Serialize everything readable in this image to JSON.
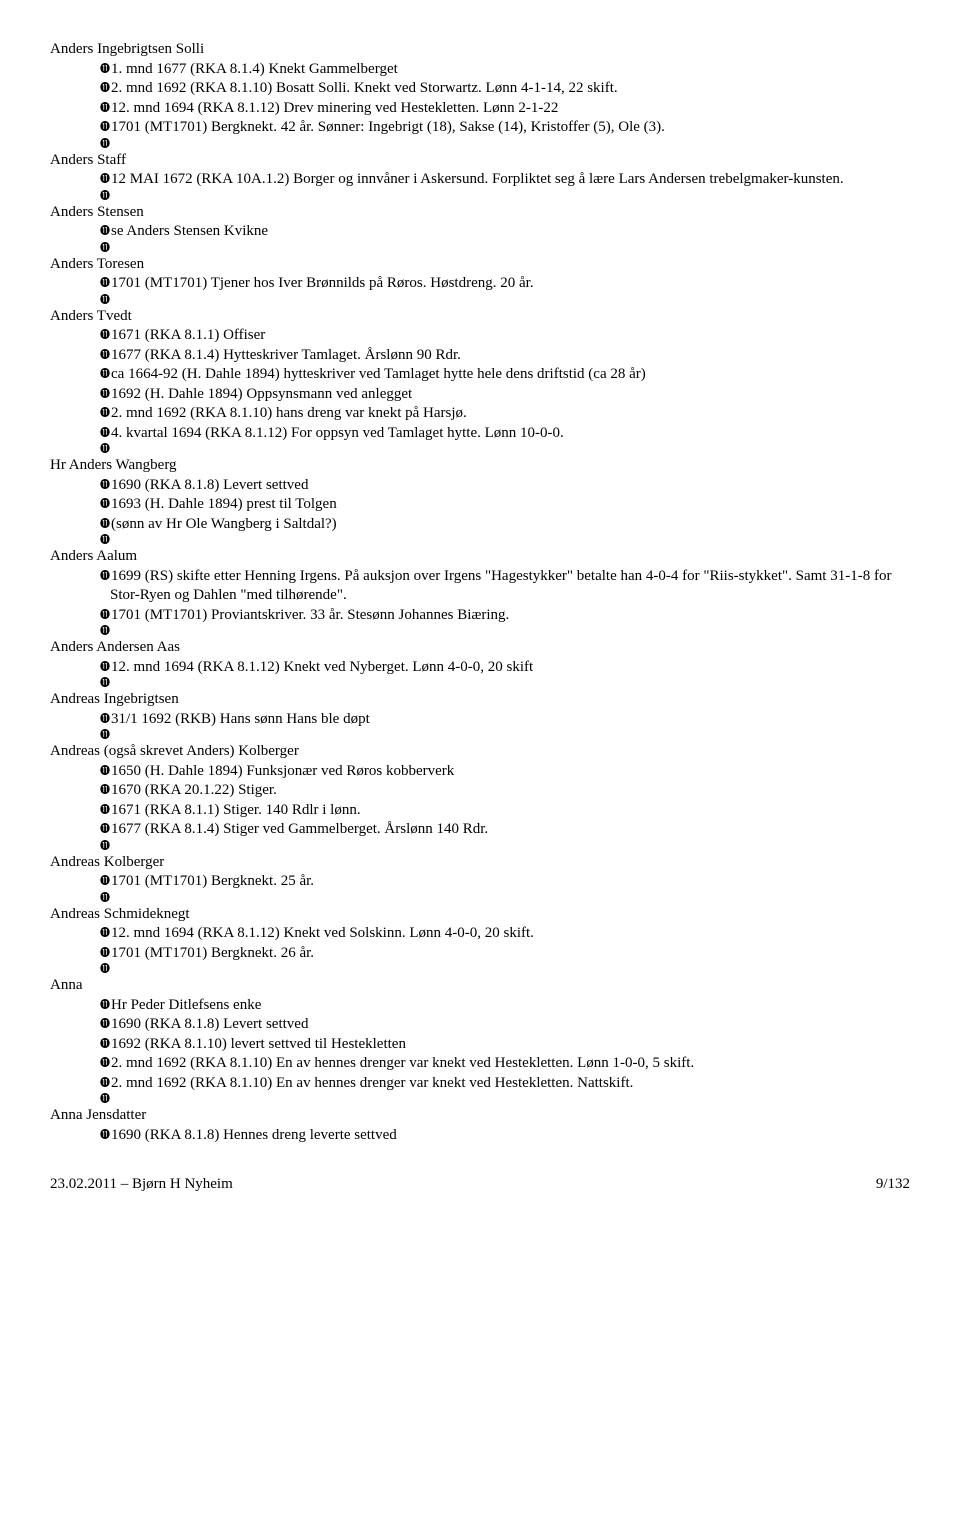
{
  "people": [
    {
      "name": "Anders Ingebrigtsen Solli",
      "entries": [
        "1. mnd 1677 (RKA 8.1.4) Knekt Gammelberget",
        "2. mnd 1692 (RKA 8.1.10) Bosatt Solli. Knekt ved Storwartz. Lønn 4-1-14, 22 skift.",
        "12. mnd 1694 (RKA 8.1.12) Drev minering ved Hestekletten. Lønn 2-1-22",
        "1701 (MT1701) Bergknekt. 42 år. Sønner: Ingebrigt (18), Sakse (14), Kristoffer (5), Ole (3)."
      ]
    },
    {
      "name": "Anders Staff",
      "entries": [
        "12 MAI 1672 (RKA 10A.1.2) Borger og innvåner i Askersund. Forpliktet seg å lære Lars Andersen trebelgmaker-kunsten."
      ]
    },
    {
      "name": "Anders Stensen",
      "entries": [
        "se Anders Stensen Kvikne"
      ]
    },
    {
      "name": "Anders Toresen",
      "entries": [
        "1701 (MT1701) Tjener hos Iver Brønnilds på Røros. Høstdreng. 20 år."
      ]
    },
    {
      "name": "Anders Tvedt",
      "entries": [
        "1671 (RKA 8.1.1) Offiser",
        "1677 (RKA 8.1.4) Hytteskriver Tamlaget. Årslønn 90 Rdr.",
        "ca 1664-92 (H. Dahle 1894) hytteskriver ved Tamlaget hytte hele dens driftstid (ca 28 år)",
        "1692 (H. Dahle 1894) Oppsynsmann ved anlegget",
        "2. mnd 1692 (RKA 8.1.10) hans dreng var knekt på Harsjø.",
        "4. kvartal 1694 (RKA 8.1.12) For oppsyn ved Tamlaget hytte. Lønn 10-0-0."
      ]
    },
    {
      "name": "Hr Anders Wangberg",
      "entries": [
        "1690 (RKA 8.1.8) Levert settved",
        "1693 (H. Dahle 1894) prest til Tolgen",
        "(sønn av Hr Ole Wangberg i Saltdal?)"
      ]
    },
    {
      "name": "Anders Aalum",
      "entries": [
        "1699 (RS) skifte etter Henning Irgens. På auksjon over Irgens \"Hagestykker\" betalte han 4-0-4 for \"Riis-stykket\". Samt 31-1-8 for Stor-Ryen og Dahlen \"med tilhørende\".",
        "1701 (MT1701) Proviantskriver. 33 år. Stesønn Johannes Biæring."
      ]
    },
    {
      "name": "Anders Andersen Aas",
      "entries": [
        "12. mnd 1694 (RKA 8.1.12) Knekt ved Nyberget. Lønn 4-0-0, 20 skift"
      ]
    },
    {
      "name": "Andreas Ingebrigtsen",
      "entries": [
        "31/1 1692 (RKB) Hans sønn Hans ble døpt"
      ]
    },
    {
      "name": "Andreas (også skrevet Anders) Kolberger",
      "entries": [
        "1650 (H. Dahle 1894) Funksjonær ved Røros kobberverk",
        "1670 (RKA 20.1.22) Stiger.",
        "1671 (RKA 8.1.1) Stiger. 140 Rdlr i lønn.",
        "1677 (RKA 8.1.4) Stiger ved Gammelberget. Årslønn 140 Rdr."
      ]
    },
    {
      "name": "Andreas Kolberger",
      "entries": [
        "1701 (MT1701) Bergknekt. 25 år."
      ]
    },
    {
      "name": "Andreas Schmideknegt",
      "entries": [
        "12. mnd 1694 (RKA 8.1.12) Knekt ved Solskinn. Lønn 4-0-0, 20 skift.",
        "1701 (MT1701) Bergknekt. 26 år."
      ]
    },
    {
      "name": "Anna",
      "entries": [
        "Hr Peder Ditlefsens enke",
        "1690 (RKA 8.1.8) Levert settved",
        "1692 (RKA 8.1.10) levert settved til Hestekletten",
        "2. mnd 1692 (RKA 8.1.10) En av hennes drenger var knekt ved Hestekletten. Lønn 1-0-0, 5 skift.",
        "2. mnd 1692 (RKA 8.1.10) En av hennes drenger var knekt ved Hestekletten. Nattskift."
      ]
    },
    {
      "name": "Anna Jensdatter",
      "entries": [
        "1690 (RKA 8.1.8) Hennes dreng leverte settved"
      ],
      "noTrailingBullet": true
    }
  ],
  "footer": {
    "left": "23.02.2011 – Bjørn H Nyheim",
    "right": "9/132"
  },
  "bullet_glyph": "⓫"
}
